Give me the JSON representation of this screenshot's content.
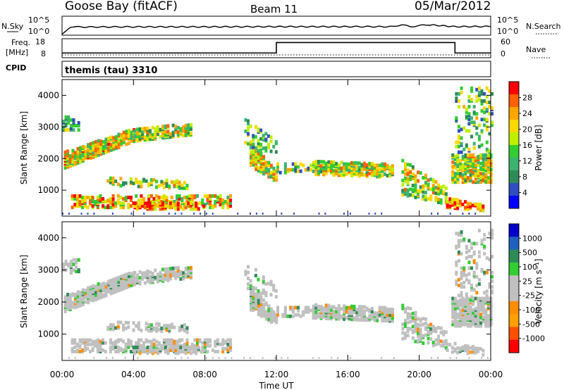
{
  "header": {
    "station": "Goose Bay (fitACF)",
    "beam": "Beam 11",
    "date": "05/Mar/2012"
  },
  "noise_panel": {
    "left_label": "N.Sky",
    "left_ticks": [
      "10^5",
      "10^0"
    ],
    "right_ticks": [
      "10^5",
      "10^0"
    ],
    "right_label": "N.Search"
  },
  "freq_panel": {
    "left_label_1": "Freq.",
    "left_label_2": "[MHz]",
    "left_ticks": [
      "18",
      "8"
    ],
    "right_ticks": [
      "60",
      "0"
    ],
    "right_label": "Nave",
    "cpid_label": "CPID"
  },
  "cpid_panel": {
    "text": "themis (tau) 3310"
  },
  "chart_data": [
    {
      "type": "line",
      "panel": "noise",
      "series": [
        {
          "name": "N.Sky",
          "style": "solid",
          "x": [
            "00:00",
            "00:30",
            "01:00",
            "04:00",
            "08:00",
            "12:00",
            "16:00",
            "18:30",
            "19:00",
            "19:30",
            "20:30",
            "22:00",
            "24:00"
          ],
          "y_frac": [
            0.05,
            0.45,
            0.43,
            0.44,
            0.44,
            0.45,
            0.45,
            0.45,
            0.55,
            0.45,
            0.55,
            0.45,
            0.46
          ]
        },
        {
          "name": "N.Search",
          "style": "dotted",
          "x": [
            "00:00",
            "24:00"
          ],
          "y_frac": [
            0.0,
            0.0
          ]
        }
      ]
    },
    {
      "type": "line",
      "panel": "frequency",
      "ylim_left": [
        8,
        18
      ],
      "ylim_right": [
        0,
        60
      ],
      "series": [
        {
          "name": "Freq.",
          "style": "solid",
          "x": [
            "00:00",
            "12:00",
            "12:00",
            "22:00",
            "22:00",
            "24:00"
          ],
          "y": [
            10.5,
            10.5,
            16.0,
            16.0,
            10.5,
            10.5
          ]
        },
        {
          "name": "Nave",
          "style": "dotted",
          "x": [
            "00:00",
            "24:00"
          ],
          "y": [
            9.5,
            9.5
          ]
        }
      ]
    },
    {
      "type": "heatmap",
      "panel": "power",
      "ylabel": "Slant Range [km]",
      "ylim": [
        180,
        4500
      ],
      "y_ticks": [
        "4000",
        "3000",
        "2000",
        "1000"
      ],
      "x_ticks": [
        "00:00",
        "04:00",
        "08:00",
        "12:00",
        "16:00",
        "20:00",
        "00:00"
      ],
      "colorbar_label": "Power [dB]",
      "colorbar_ticks": [
        "28",
        "24",
        "20",
        "16",
        "12",
        "8",
        "4"
      ],
      "colorbar_range": [
        0,
        32
      ],
      "colors": [
        "#0000ff",
        "#2f4fc0",
        "#2e8b57",
        "#3cb371",
        "#32cd32",
        "#bfef00",
        "#ffd700",
        "#ffa500",
        "#ff6000",
        "#ff0000"
      ]
    },
    {
      "type": "heatmap",
      "panel": "velocity",
      "ylabel": "Slant Range [km]",
      "ylim": [
        180,
        4500
      ],
      "y_ticks": [
        "4000",
        "3000",
        "2000",
        "1000"
      ],
      "x_ticks": [
        "00:00",
        "04:00",
        "08:00",
        "12:00",
        "16:00",
        "20:00",
        "00:00"
      ],
      "xlabel": "Time UT",
      "colorbar_label": "Velocity [m s⁻¹]",
      "colorbar_ticks": [
        "1000",
        "500",
        "100",
        "25",
        "-25",
        "-100",
        "-500",
        "-1000"
      ],
      "colors": [
        "#ff0000",
        "#ff5000",
        "#ffa000",
        "#ff8c00",
        "#c0c0c0",
        "#c0c0c0",
        "#32cd32",
        "#2e8b57",
        "#2060c0",
        "#0000cc"
      ]
    }
  ]
}
